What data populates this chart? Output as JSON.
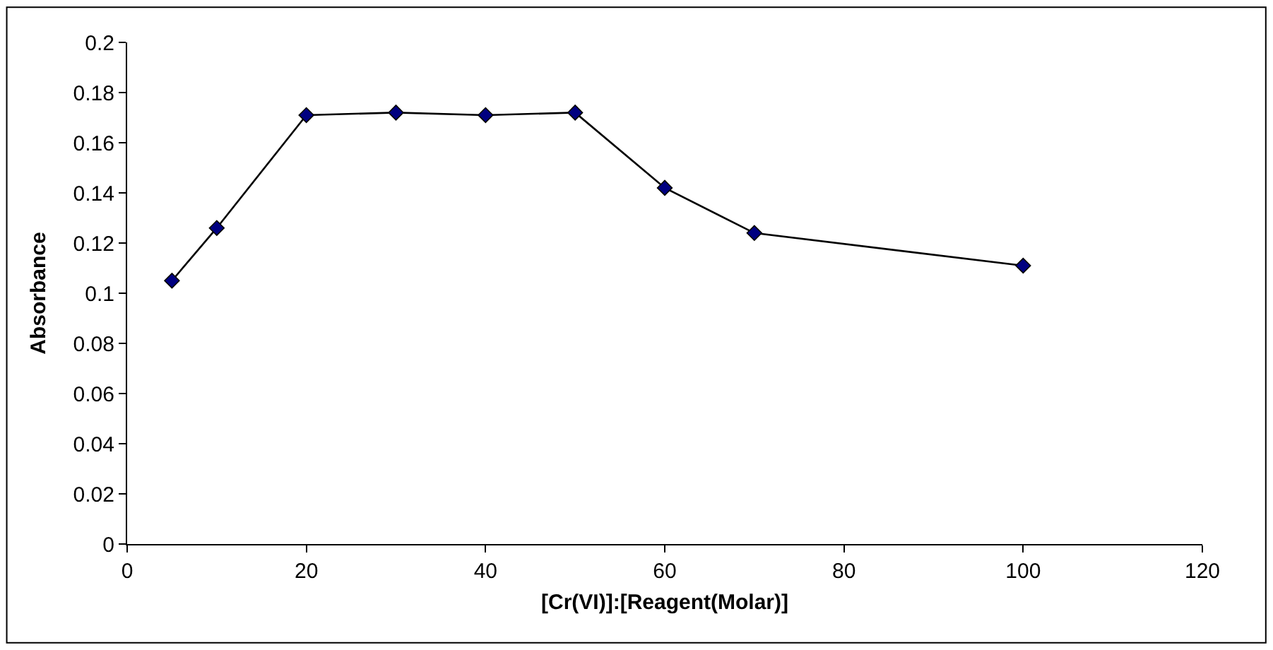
{
  "chart_data": {
    "type": "line",
    "xlabel": "[Cr(VI)]:[Reagent(Molar)]",
    "ylabel": "Absorbance",
    "x": [
      5,
      10,
      20,
      30,
      40,
      50,
      60,
      70,
      100
    ],
    "series": [
      {
        "color": "#000080",
        "values": [
          0.105,
          0.126,
          0.171,
          0.172,
          0.171,
          0.172,
          0.142,
          0.124,
          0.111
        ]
      }
    ],
    "xlim": [
      0,
      120
    ],
    "xticks": [
      0,
      20,
      40,
      60,
      80,
      100,
      120
    ],
    "ylim": [
      0,
      0.2
    ],
    "yticks": [
      0,
      0.02,
      0.04,
      0.06,
      0.08,
      0.1,
      0.12,
      0.14,
      0.16,
      0.18,
      0.2
    ],
    "marker": "diamond",
    "line_style": "solid",
    "legend": false
  }
}
